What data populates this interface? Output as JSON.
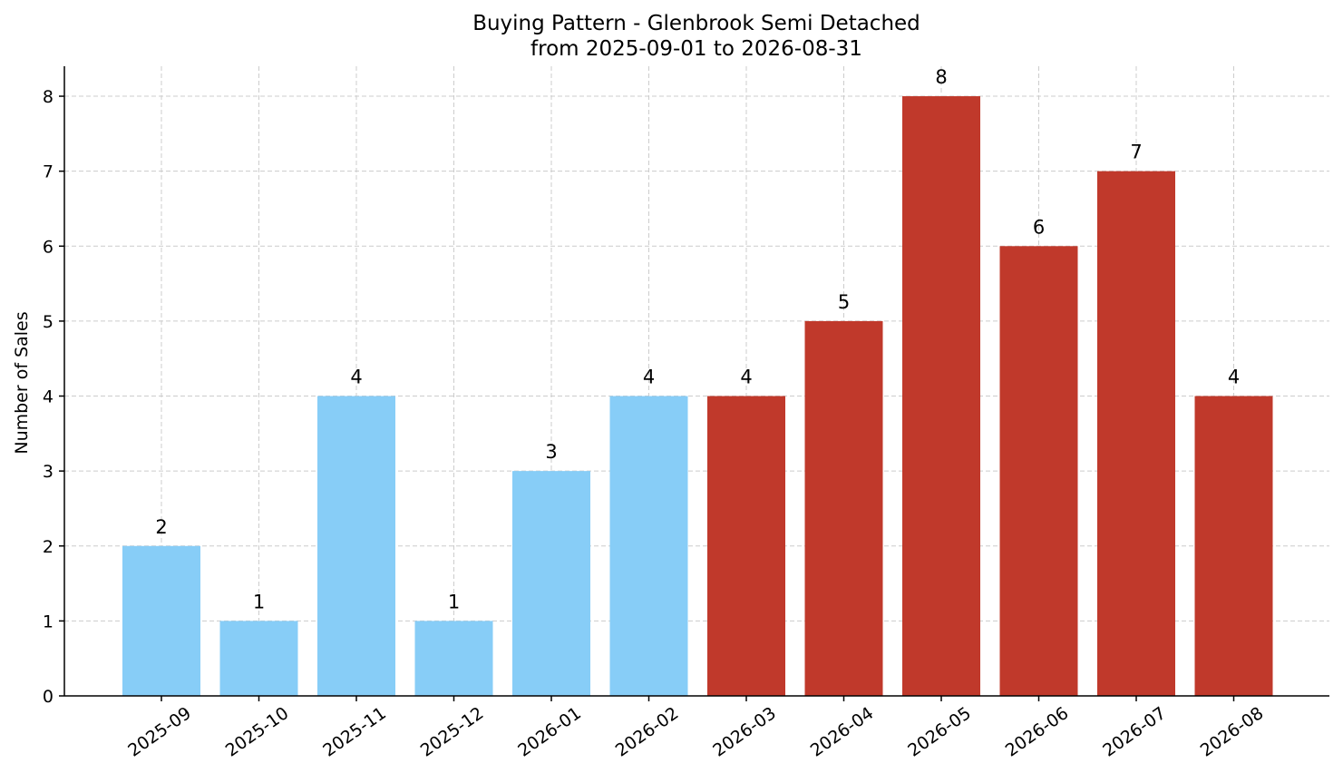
{
  "chart_data": {
    "type": "bar",
    "title": "Buying Pattern - Glenbrook Semi Detached",
    "subtitle": "from 2025-09-01 to 2026-08-31",
    "xlabel": "",
    "ylabel": "Number of Sales",
    "categories": [
      "2025-09",
      "2025-10",
      "2025-11",
      "2025-12",
      "2026-01",
      "2026-02",
      "2026-03",
      "2026-04",
      "2026-05",
      "2026-06",
      "2026-07",
      "2026-08"
    ],
    "values": [
      2,
      1,
      4,
      1,
      3,
      4,
      4,
      5,
      8,
      6,
      7,
      4
    ],
    "bar_colors": [
      "#87cdf7",
      "#87cdf7",
      "#87cdf7",
      "#87cdf7",
      "#87cdf7",
      "#87cdf7",
      "#c0392b",
      "#c0392b",
      "#c0392b",
      "#c0392b",
      "#c0392b",
      "#c0392b"
    ],
    "ylim": [
      0,
      8.4
    ],
    "yticks": [
      0,
      1,
      2,
      3,
      4,
      5,
      6,
      7,
      8
    ],
    "grid": true,
    "data_labels": true
  }
}
